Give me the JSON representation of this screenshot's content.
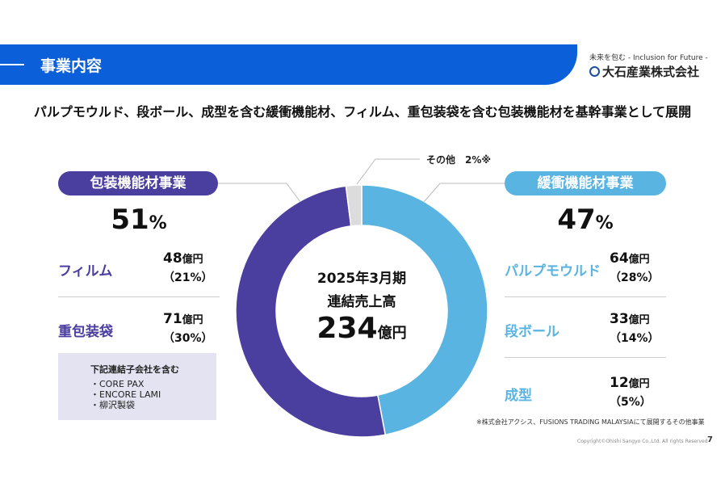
{
  "header": {
    "title": "事業内容",
    "tagline": "未来を包む - Inclusion for Future -",
    "company": "大石産業株式会社"
  },
  "lead": "パルプモウルド、段ボール、成型を含む緩衝機能材、フィルム、重包装袋を含む包装機能材を基幹事業として展開",
  "left": {
    "title": "包装機能材事業",
    "share": "51",
    "unit": "%",
    "items": [
      {
        "label": "フィルム",
        "value": "48",
        "unit": "億円",
        "pct": "（21%）"
      },
      {
        "label": "重包装袋",
        "value": "71",
        "unit": "億円",
        "pct": "（30%）"
      }
    ],
    "note": {
      "title": "下記連結子会社を含む",
      "items": [
        "・CORE PAX",
        "・ENCORE LAMI",
        "・柳沢製袋"
      ]
    }
  },
  "right": {
    "title": "緩衝機能材事業",
    "share": "47",
    "unit": "%",
    "items": [
      {
        "label": "パルプモウルド",
        "value": "64",
        "unit": "億円",
        "pct": "（28%）"
      },
      {
        "label": "段ボール",
        "value": "33",
        "unit": "億円",
        "pct": "（14%）"
      },
      {
        "label": "成型",
        "value": "12",
        "unit": "億円",
        "pct": "（5%）"
      }
    ]
  },
  "center": {
    "line1": "2025年3月期",
    "line2": "連結売上高",
    "value": "234",
    "unit": "億円"
  },
  "other_label": "その他　2%※",
  "footnote": "※株式会社アクシス、FUSIONS TRADING MALAYSIAにて展開するその他事業",
  "copyright": "Copyright©Ohishi Sangyo Co.,Ltd. All rights Reserved",
  "page": "7",
  "chart_data": {
    "type": "pie",
    "donut": true,
    "categories": [
      "緩衝機能材事業",
      "包装機能材事業",
      "その他"
    ],
    "values": [
      47,
      51,
      2
    ],
    "colors": [
      "#5ab4e2",
      "#4a3f9f",
      "#dcdcdc"
    ],
    "start": "top",
    "direction": "clockwise"
  }
}
